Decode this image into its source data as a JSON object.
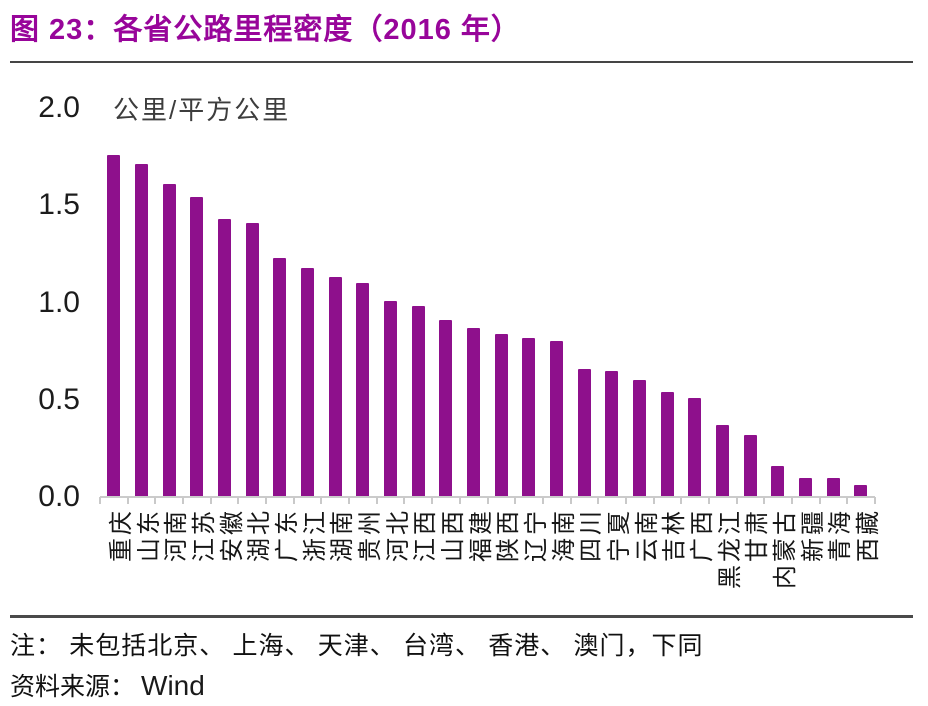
{
  "figure": {
    "title": "图 23：各省公路里程密度（2016 年）",
    "note": "注： 未包括北京、 上海、 天津、 台湾、 香港、 澳门，下同",
    "source_label": "资料来源：",
    "source_value": "Wind"
  },
  "chart_data": {
    "type": "bar",
    "title": "各省公路里程密度（2016 年）",
    "unit_label": "公里/平方公里",
    "xlabel": "",
    "ylabel": "公里/平方公里",
    "ylim": [
      0.0,
      2.0
    ],
    "yticks": [
      "0.0",
      "0.5",
      "1.0",
      "1.5",
      "2.0"
    ],
    "grid": false,
    "legend": "none",
    "bar_color": "#8E108C",
    "categories": [
      "重庆",
      "山东",
      "河南",
      "江苏",
      "安徽",
      "湖北",
      "广东",
      "浙江",
      "湖南",
      "贵州",
      "河北",
      "江西",
      "山西",
      "福建",
      "陕西",
      "辽宁",
      "海南",
      "四川",
      "宁夏",
      "云南",
      "吉林",
      "广西",
      "黑龙江",
      "甘肃",
      "内蒙古",
      "新疆",
      "青海",
      "西藏"
    ],
    "values": [
      1.76,
      1.71,
      1.61,
      1.54,
      1.43,
      1.41,
      1.23,
      1.18,
      1.13,
      1.1,
      1.01,
      0.98,
      0.91,
      0.87,
      0.84,
      0.82,
      0.8,
      0.66,
      0.65,
      0.6,
      0.54,
      0.51,
      0.37,
      0.32,
      0.16,
      0.1,
      0.1,
      0.06
    ]
  }
}
